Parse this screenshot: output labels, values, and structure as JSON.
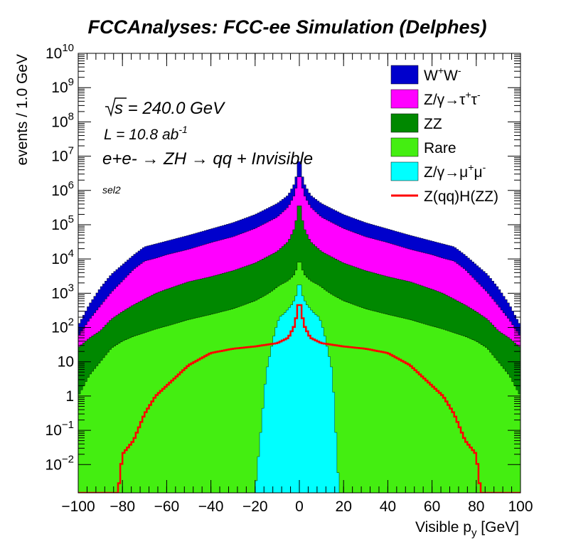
{
  "chart_data": {
    "type": "area",
    "title": "FCCAnalyses: FCC-ee Simulation (Delphes)",
    "xlabel_main": "Visible p",
    "xlabel_sub": "y",
    "xlabel_unit": " [GeV]",
    "ylabel": "events / 1.0 GeV",
    "xlim": [
      -100,
      100
    ],
    "ylim": [
      0.0015,
      10000000000
    ],
    "y_scale": "log",
    "grid": false,
    "legend_position": "top-right",
    "x_ticks": [
      -100,
      -80,
      -60,
      -40,
      -20,
      0,
      20,
      40,
      60,
      80,
      100
    ],
    "y_ticks": [
      {
        "value": 0.01,
        "base": "10",
        "exp": "−2"
      },
      {
        "value": 0.1,
        "base": "10",
        "exp": "−1"
      },
      {
        "value": 1,
        "base": "1",
        "exp": ""
      },
      {
        "value": 10,
        "base": "10",
        "exp": ""
      },
      {
        "value": 100,
        "base": "10",
        "exp": "2"
      },
      {
        "value": 1000,
        "base": "10",
        "exp": "3"
      },
      {
        "value": 10000,
        "base": "10",
        "exp": "4"
      },
      {
        "value": 100000,
        "base": "10",
        "exp": "5"
      },
      {
        "value": 1000000,
        "base": "10",
        "exp": "6"
      },
      {
        "value": 10000000,
        "base": "10",
        "exp": "7"
      },
      {
        "value": 100000000,
        "base": "10",
        "exp": "8"
      },
      {
        "value": 1000000000,
        "base": "10",
        "exp": "9"
      },
      {
        "value": 10000000000,
        "base": "10",
        "exp": "10"
      }
    ],
    "annotations": {
      "sqrt_s": "s",
      "energy": " = 240.0 GeV",
      "lumi": "L = 10.8 ab",
      "lumi_exp": "-1",
      "process": "e+e- → ZH → qq + Invisible",
      "selection": "sel2"
    },
    "series": [
      {
        "name": "W+W-",
        "legend": [
          "W",
          "+",
          "W",
          "-"
        ],
        "color": "#0000cc",
        "style": "stack",
        "points": [
          [
            -100,
            60
          ],
          [
            -95,
            300
          ],
          [
            -90,
            1000
          ],
          [
            -85,
            2500
          ],
          [
            -80,
            4500
          ],
          [
            -75,
            8000
          ],
          [
            -70,
            14000
          ],
          [
            -65,
            17000
          ],
          [
            -60,
            20000
          ],
          [
            -50,
            30000
          ],
          [
            -40,
            45000
          ],
          [
            -30,
            70000
          ],
          [
            -20,
            120000
          ],
          [
            -10,
            250000
          ],
          [
            -5,
            400000
          ],
          [
            -2,
            900000
          ],
          [
            -1,
            2000000
          ],
          [
            0,
            10000000
          ],
          [
            1,
            2000000
          ],
          [
            2,
            900000
          ],
          [
            5,
            400000
          ],
          [
            10,
            250000
          ],
          [
            20,
            120000
          ],
          [
            30,
            70000
          ],
          [
            40,
            45000
          ],
          [
            50,
            30000
          ],
          [
            60,
            20000
          ],
          [
            65,
            17000
          ],
          [
            70,
            14000
          ],
          [
            75,
            8000
          ],
          [
            80,
            4500
          ],
          [
            85,
            2500
          ],
          [
            90,
            1000
          ],
          [
            95,
            300
          ],
          [
            100,
            60
          ]
        ]
      },
      {
        "name": "Z/γ→τ+τ-",
        "legend": [
          "Z/γ→τ",
          "+",
          "τ",
          "-"
        ],
        "color": "#ff00ff",
        "style": "stack",
        "points": [
          [
            -100,
            30
          ],
          [
            -95,
            120
          ],
          [
            -90,
            350
          ],
          [
            -85,
            900
          ],
          [
            -80,
            2000
          ],
          [
            -75,
            4500
          ],
          [
            -70,
            8000
          ],
          [
            -65,
            9500
          ],
          [
            -60,
            12000
          ],
          [
            -50,
            17000
          ],
          [
            -40,
            27000
          ],
          [
            -30,
            40000
          ],
          [
            -20,
            70000
          ],
          [
            -10,
            150000
          ],
          [
            -5,
            300000
          ],
          [
            -2,
            700000
          ],
          [
            -1,
            1500000
          ],
          [
            0,
            3000000
          ],
          [
            1,
            1500000
          ],
          [
            2,
            700000
          ],
          [
            5,
            300000
          ],
          [
            10,
            150000
          ],
          [
            20,
            70000
          ],
          [
            30,
            40000
          ],
          [
            40,
            27000
          ],
          [
            50,
            17000
          ],
          [
            60,
            12000
          ],
          [
            65,
            9500
          ],
          [
            70,
            8000
          ],
          [
            75,
            4500
          ],
          [
            80,
            2000
          ],
          [
            85,
            900
          ],
          [
            90,
            350
          ],
          [
            95,
            120
          ],
          [
            100,
            30
          ]
        ]
      },
      {
        "name": "ZZ",
        "legend": [
          "ZZ",
          "",
          "",
          ""
        ],
        "color": "#008800",
        "style": "stack",
        "points": [
          [
            -100,
            25
          ],
          [
            -95,
            45
          ],
          [
            -90,
            70
          ],
          [
            -85,
            150
          ],
          [
            -80,
            250
          ],
          [
            -75,
            400
          ],
          [
            -70,
            600
          ],
          [
            -65,
            900
          ],
          [
            -60,
            1200
          ],
          [
            -50,
            2000
          ],
          [
            -40,
            2800
          ],
          [
            -30,
            4200
          ],
          [
            -20,
            7000
          ],
          [
            -10,
            15000
          ],
          [
            -5,
            30000
          ],
          [
            -2,
            80000
          ],
          [
            -1,
            200000
          ],
          [
            0,
            600000
          ],
          [
            1,
            200000
          ],
          [
            2,
            80000
          ],
          [
            5,
            30000
          ],
          [
            10,
            15000
          ],
          [
            20,
            7000
          ],
          [
            30,
            4200
          ],
          [
            40,
            2800
          ],
          [
            50,
            2000
          ],
          [
            60,
            1200
          ],
          [
            65,
            900
          ],
          [
            70,
            600
          ],
          [
            75,
            400
          ],
          [
            80,
            250
          ],
          [
            85,
            150
          ],
          [
            90,
            70
          ],
          [
            95,
            45
          ],
          [
            100,
            25
          ]
        ]
      },
      {
        "name": "Rare",
        "legend": [
          "Rare",
          "",
          "",
          ""
        ],
        "color": "#44ee11",
        "style": "stack",
        "points": [
          [
            -100,
            1
          ],
          [
            -95,
            4
          ],
          [
            -90,
            10
          ],
          [
            -85,
            25
          ],
          [
            -80,
            40
          ],
          [
            -75,
            55
          ],
          [
            -70,
            70
          ],
          [
            -65,
            90
          ],
          [
            -60,
            110
          ],
          [
            -50,
            170
          ],
          [
            -40,
            240
          ],
          [
            -30,
            350
          ],
          [
            -20,
            600
          ],
          [
            -15,
            900
          ],
          [
            -10,
            1400
          ],
          [
            -5,
            2000
          ],
          [
            -2,
            3000
          ],
          [
            -1,
            5000
          ],
          [
            0,
            8000
          ],
          [
            1,
            5000
          ],
          [
            2,
            3000
          ],
          [
            5,
            2000
          ],
          [
            10,
            1400
          ],
          [
            15,
            900
          ],
          [
            20,
            600
          ],
          [
            30,
            350
          ],
          [
            40,
            240
          ],
          [
            50,
            170
          ],
          [
            60,
            110
          ],
          [
            65,
            90
          ],
          [
            70,
            70
          ],
          [
            75,
            55
          ],
          [
            80,
            40
          ],
          [
            85,
            25
          ],
          [
            90,
            10
          ],
          [
            95,
            4
          ],
          [
            100,
            1
          ]
        ]
      },
      {
        "name": "Z/γ→μ+μ-",
        "legend": [
          "Z/γ→μ",
          "+",
          "μ",
          "-"
        ],
        "color": "#00ffff",
        "style": "stack",
        "points": [
          [
            -20,
            0.0015
          ],
          [
            -15,
            5
          ],
          [
            -13,
            20
          ],
          [
            -11,
            80
          ],
          [
            -9,
            200
          ],
          [
            -7,
            250
          ],
          [
            -5,
            350
          ],
          [
            -3,
            500
          ],
          [
            -1,
            1000
          ],
          [
            0,
            3000
          ],
          [
            1,
            1000
          ],
          [
            3,
            500
          ],
          [
            5,
            350
          ],
          [
            7,
            250
          ],
          [
            9,
            200
          ],
          [
            11,
            80
          ],
          [
            13,
            20
          ],
          [
            15,
            5
          ],
          [
            18,
            0.0015
          ]
        ]
      },
      {
        "name": "Z(qq)H(ZZ)",
        "legend": [
          "Z(qq)H(ZZ)",
          "",
          "",
          ""
        ],
        "color": "#ff0000",
        "style": "line",
        "points": [
          [
            -82,
            0.0015
          ],
          [
            -80,
            0.02
          ],
          [
            -75,
            0.05
          ],
          [
            -70,
            0.3
          ],
          [
            -65,
            1
          ],
          [
            -60,
            2
          ],
          [
            -55,
            4
          ],
          [
            -50,
            8
          ],
          [
            -45,
            12
          ],
          [
            -40,
            18
          ],
          [
            -30,
            24
          ],
          [
            -20,
            28
          ],
          [
            -10,
            35
          ],
          [
            -5,
            50
          ],
          [
            -2,
            120
          ],
          [
            0,
            700
          ],
          [
            2,
            120
          ],
          [
            5,
            50
          ],
          [
            10,
            35
          ],
          [
            20,
            28
          ],
          [
            30,
            24
          ],
          [
            40,
            18
          ],
          [
            45,
            12
          ],
          [
            50,
            8
          ],
          [
            55,
            4
          ],
          [
            60,
            2
          ],
          [
            65,
            1
          ],
          [
            70,
            0.3
          ],
          [
            75,
            0.05
          ],
          [
            80,
            0.02
          ],
          [
            82,
            0.0015
          ]
        ]
      }
    ]
  }
}
